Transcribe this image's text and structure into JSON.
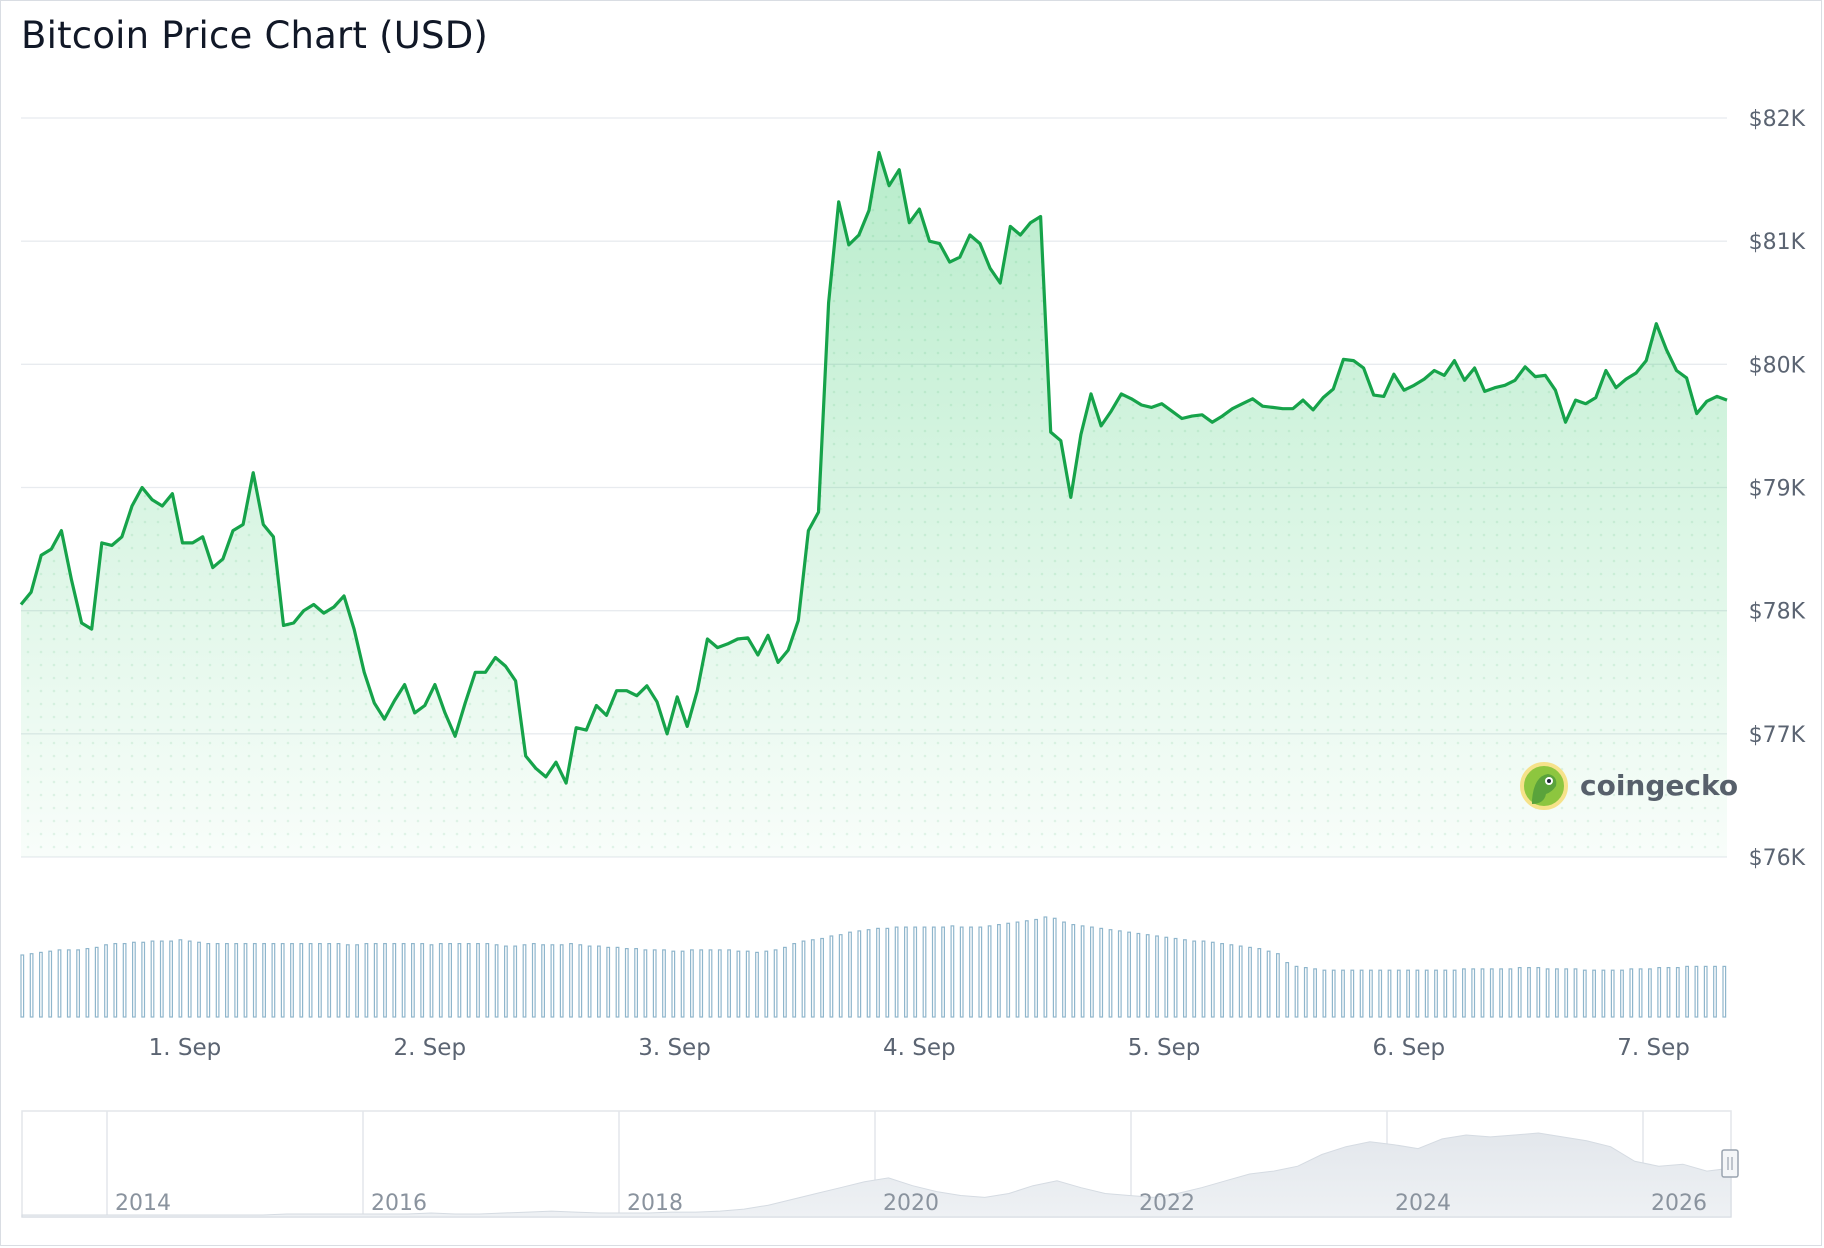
{
  "title": "Bitcoin Price Chart (USD)",
  "watermark": {
    "text": "coingecko",
    "icon": "coingecko-gecko-icon"
  },
  "colors": {
    "line": "#16a34a",
    "area": "#22c55e",
    "volume": "#8fb6cc",
    "grid": "#e8ebef"
  },
  "chart_data": {
    "type": "line",
    "title": "Bitcoin Price Chart (USD)",
    "xlabel": "",
    "ylabel": "",
    "grid": true,
    "x_range_days": [
      0.33,
      7.3
    ],
    "ylim": [
      76000,
      82000
    ],
    "yticks": [
      76000,
      77000,
      78000,
      79000,
      80000,
      81000,
      82000
    ],
    "ytick_labels": [
      "$76K",
      "$77K",
      "$78K",
      "$79K",
      "$80K",
      "$81K",
      "$82K"
    ],
    "xticks": [
      1,
      2,
      3,
      4,
      5,
      6,
      7
    ],
    "xtick_labels": [
      "1. Sep",
      "2. Sep",
      "3. Sep",
      "4. Sep",
      "5. Sep",
      "6. Sep",
      "7. Sep"
    ],
    "series": [
      {
        "values": [
          78050,
          78150,
          78450,
          78500,
          78650,
          78250,
          77900,
          77850,
          78550,
          78530,
          78600,
          78850,
          79000,
          78900,
          78850,
          78950,
          78550,
          78550,
          78600,
          78350,
          78420,
          78650,
          78700,
          79120,
          78700,
          78600,
          77880,
          77900,
          78000,
          78050,
          77980,
          78030,
          78120,
          77850,
          77500,
          77250,
          77120,
          77270,
          77400,
          77170,
          77230,
          77400,
          77170,
          76980,
          77250,
          77500,
          77500,
          77620,
          77550,
          77430,
          76820,
          76720,
          76650,
          76770,
          76600,
          77050,
          77030,
          77230,
          77150,
          77350,
          77350,
          77310,
          77390,
          77260,
          77000,
          77300,
          77060,
          77350,
          77770,
          77700,
          77730,
          77770,
          77780,
          77640,
          77800,
          77580,
          77680,
          77920,
          78650,
          78800,
          80500,
          81320,
          80970,
          81050,
          81250,
          81720,
          81450,
          81580,
          81150,
          81260,
          81000,
          80980,
          80830,
          80870,
          81050,
          80980,
          80780,
          80660,
          81120,
          81050,
          81150,
          81200,
          79450,
          79380,
          78920,
          79430,
          79760,
          79500,
          79620,
          79760,
          79720,
          79670,
          79650,
          79680,
          79620,
          79560,
          79580,
          79590,
          79530,
          79580,
          79640,
          79680,
          79720,
          79660,
          79650,
          79640,
          79640,
          79710,
          79630,
          79730,
          79800,
          80040,
          80030,
          79970,
          79750,
          79740,
          79920,
          79790,
          79830,
          79880,
          79950,
          79910,
          80030,
          79870,
          79970,
          79780,
          79810,
          79830,
          79870,
          79980,
          79900,
          79910,
          79790,
          79530,
          79710,
          79680,
          79730,
          79950,
          79810,
          79880,
          79930,
          80030,
          80330,
          80120,
          79950,
          79890,
          79600,
          79700,
          79740,
          79710
        ]
      }
    ],
    "volume": {
      "values": [
        49,
        50,
        51,
        52,
        53,
        53,
        53,
        54,
        55,
        57,
        58,
        58,
        59,
        59,
        60,
        60,
        60,
        61,
        60,
        59,
        58,
        58,
        58,
        58,
        58,
        58,
        58,
        58,
        58,
        58,
        58,
        58,
        58,
        58,
        58,
        57,
        57,
        58,
        58,
        58,
        58,
        58,
        58,
        58,
        57,
        58,
        58,
        58,
        58,
        58,
        58,
        57,
        56,
        56,
        57,
        58,
        57,
        57,
        57,
        58,
        57,
        56,
        56,
        55,
        55,
        54,
        54,
        53,
        53,
        53,
        52,
        52,
        53,
        53,
        53,
        53,
        53,
        52,
        52,
        51,
        52,
        53,
        55,
        58,
        60,
        61,
        62,
        64,
        65,
        67,
        68,
        69,
        70,
        70,
        71,
        71,
        71,
        71,
        71,
        71,
        72,
        71,
        71,
        71,
        72,
        73,
        74,
        75,
        76,
        77,
        79,
        78,
        75,
        73,
        72,
        71,
        70,
        69,
        68,
        67,
        66,
        65,
        64,
        63,
        62,
        61,
        60,
        60,
        59,
        58,
        57,
        56,
        55,
        54,
        52,
        50,
        43,
        40,
        39,
        38,
        37,
        37,
        37,
        37,
        37,
        37,
        37,
        37,
        37,
        37,
        37,
        37,
        37,
        37,
        37,
        38,
        38,
        38,
        38,
        38,
        38,
        39,
        39,
        39,
        38,
        38,
        38,
        38,
        37,
        37,
        37,
        37,
        37,
        38,
        38,
        38,
        39,
        39,
        39,
        40,
        40,
        40,
        40,
        40
      ],
      "scale_note": "relative bar heights (no axis shown)"
    },
    "navigator": {
      "labels": [
        "2014",
        "2016",
        "2018",
        "2020",
        "2022",
        "2024",
        "2026"
      ],
      "values": [
        0,
        0,
        0,
        0,
        0,
        0,
        0,
        0,
        0,
        0,
        0,
        1,
        1,
        1,
        1,
        1,
        1,
        2,
        1,
        1,
        2,
        3,
        4,
        3,
        2,
        2,
        2,
        3,
        3,
        4,
        6,
        10,
        16,
        22,
        28,
        34,
        38,
        30,
        24,
        20,
        18,
        22,
        30,
        35,
        28,
        22,
        20,
        18,
        22,
        28,
        35,
        42,
        45,
        50,
        62,
        70,
        75,
        72,
        68,
        78,
        82,
        80,
        82,
        84,
        80,
        76,
        70,
        55,
        50,
        52,
        45,
        48
      ]
    }
  }
}
